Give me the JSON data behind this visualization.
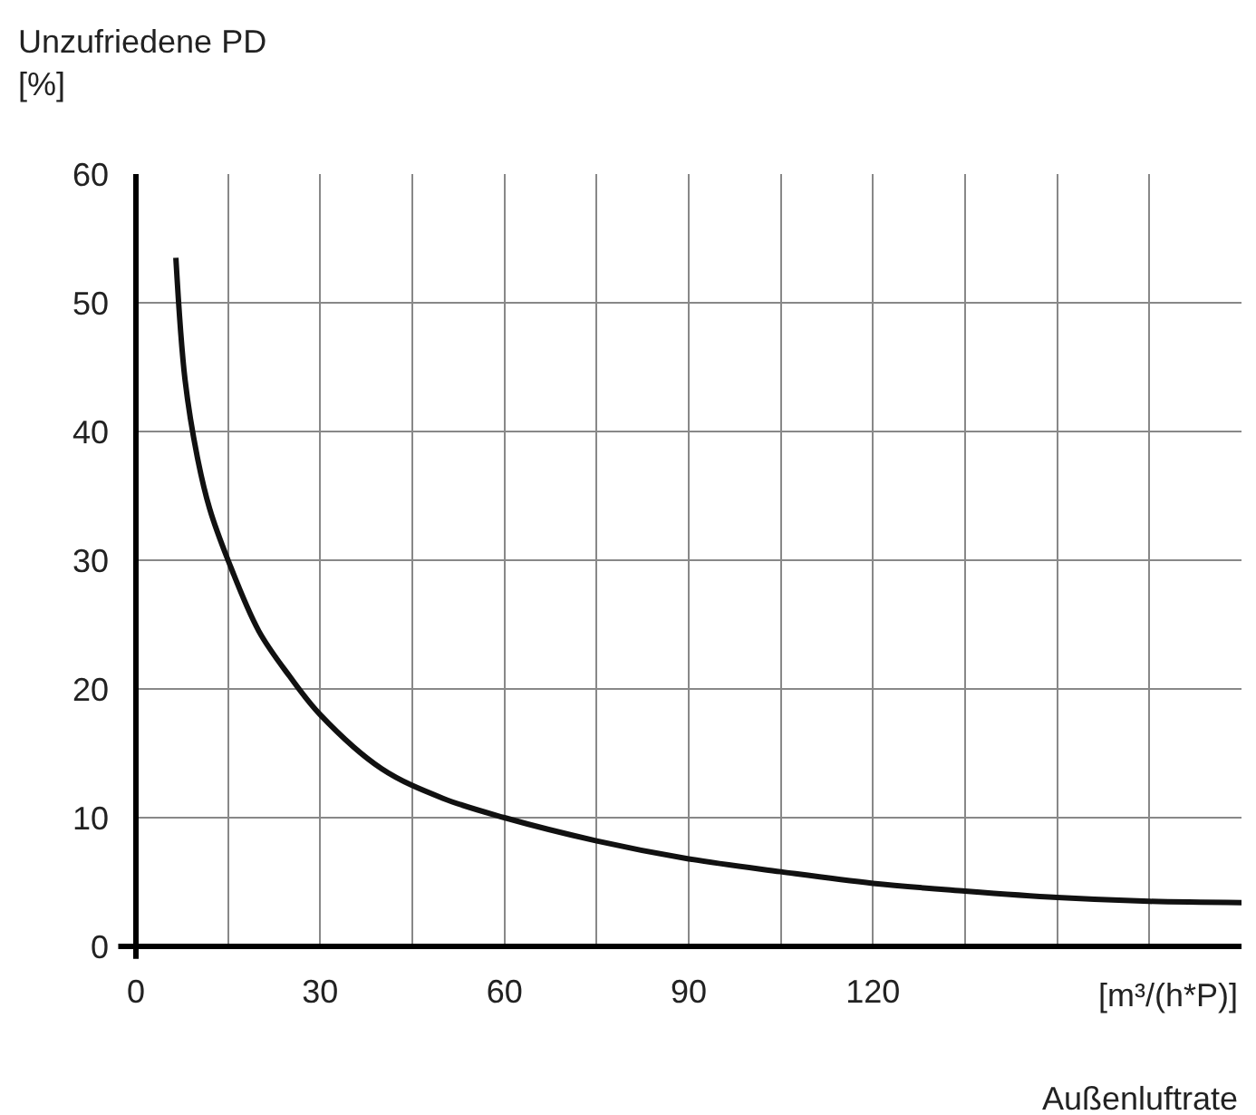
{
  "chart_data": {
    "type": "line",
    "ylabel": "Unzufriedene PD\n[%]",
    "xlabel": "Außenluftrate",
    "annotations": [
      "[m³/(h*P)]"
    ],
    "x": [
      6.5,
      8,
      10,
      12,
      15,
      20,
      25,
      30,
      40,
      50,
      60,
      75,
      90,
      105,
      120,
      135,
      150,
      165,
      180
    ],
    "series": [
      {
        "color": "#111111",
        "values": [
          53.5,
          44,
          38,
          34,
          30,
          24.5,
          21,
          18,
          13.8,
          11.5,
          10,
          8.2,
          6.8,
          5.8,
          4.9,
          4.3,
          3.8,
          3.5,
          3.4
        ]
      }
    ],
    "xlim": [
      0,
      180
    ],
    "ylim": [
      0,
      60
    ],
    "xticks": [
      0,
      {
        "value": 15,
        "label": null
      },
      30,
      {
        "value": 45,
        "label": null
      },
      60,
      {
        "value": 75,
        "label": null
      },
      90,
      {
        "value": 105,
        "label": null
      },
      120,
      {
        "value": 135,
        "label": null
      },
      {
        "value": 150,
        "label": null
      },
      {
        "value": 165,
        "label": null
      }
    ],
    "yticks": [
      0,
      10,
      20,
      30,
      40,
      50,
      60
    ],
    "grid": true,
    "marker": "none",
    "line_style": "solid"
  }
}
